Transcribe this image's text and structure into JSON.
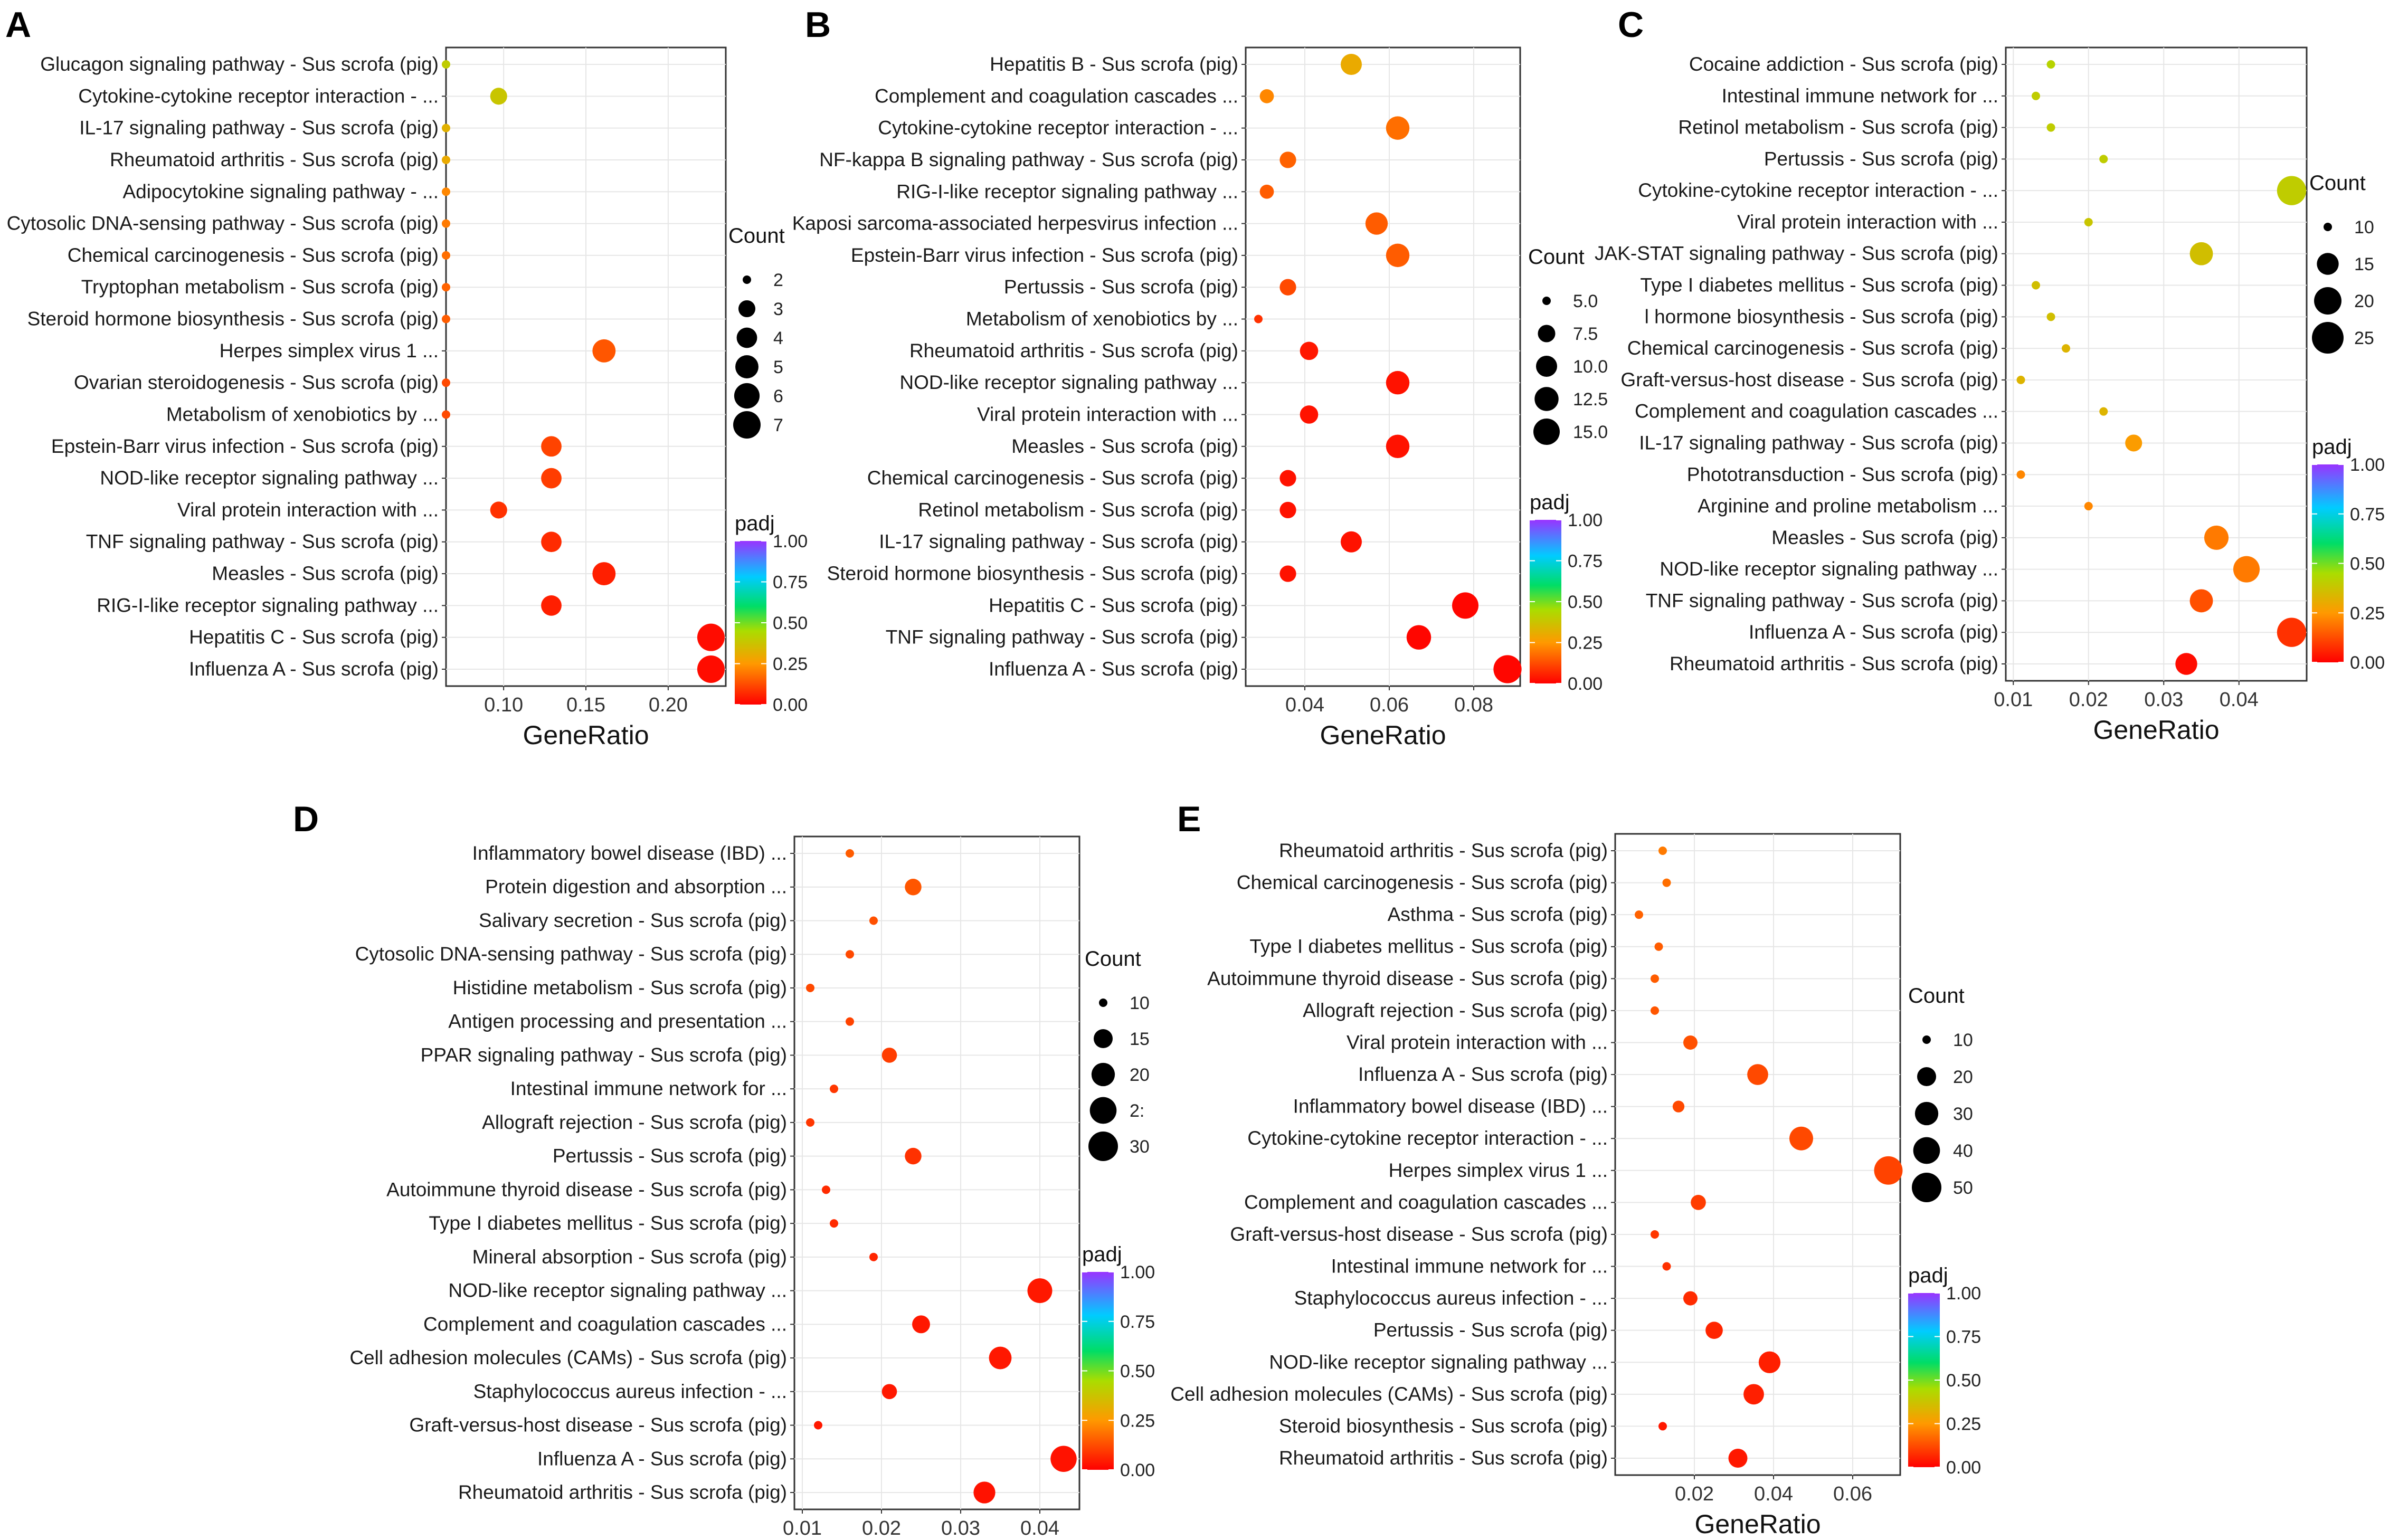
{
  "colors": {
    "low": "#ff0000",
    "mid1": "#ff8000",
    "mid2": "#c8d400",
    "mid3": "#00cc66",
    "mid4": "#00ccff",
    "high": "#8b2bff"
  },
  "chart_data": [
    {
      "panel": "A",
      "type": "scatter",
      "title": "",
      "xlabel": "GeneRatio",
      "ylabel": "",
      "xlim": [
        0.065,
        0.235
      ],
      "xticks": [
        0.1,
        0.15,
        0.2
      ],
      "xtick_labels": [
        "0.10",
        "0.15",
        "0.20"
      ],
      "size_legend": {
        "title": "Count",
        "values": [
          2,
          3,
          4,
          5,
          6,
          7
        ],
        "labels": [
          "2",
          "3",
          "4",
          "5",
          "6",
          "7"
        ]
      },
      "color_legend": {
        "title": "padj",
        "labels": [
          "1.00",
          "0.75",
          "0.50",
          "0.25",
          "0.00"
        ]
      },
      "terms": [
        "Glucagon signaling pathway - Sus scrofa (pig)",
        "Cytokine-cytokine receptor interaction - ...",
        "IL-17 signaling pathway - Sus scrofa (pig)",
        "Rheumatoid arthritis - Sus scrofa (pig)",
        "Adipocytokine signaling pathway - ...",
        "Cytosolic DNA-sensing pathway - Sus scrofa (pig)",
        "Chemical carcinogenesis - Sus scrofa (pig)",
        "Tryptophan metabolism - Sus scrofa (pig)",
        "Steroid hormone biosynthesis - Sus scrofa (pig)",
        "Herpes simplex virus 1 ...",
        "Ovarian steroidogenesis - Sus scrofa (pig)",
        "Metabolism of xenobiotics by ...",
        "Epstein-Barr virus infection - Sus scrofa (pig)",
        "NOD-like receptor signaling pathway ...",
        "Viral protein interaction with ...",
        "TNF signaling pathway - Sus scrofa (pig)",
        "Measles - Sus scrofa (pig)",
        "RIG-I-like receptor signaling pathway ...",
        "Hepatitis C - Sus scrofa (pig)",
        "Influenza A - Sus scrofa (pig)"
      ],
      "term_sizes": [
        34,
        36,
        34,
        36,
        36,
        32,
        34,
        34,
        34,
        36,
        34,
        37,
        33,
        34,
        33,
        34,
        34,
        36,
        36,
        36
      ],
      "gene_ratio": [
        0.065,
        0.097,
        0.065,
        0.065,
        0.065,
        0.065,
        0.065,
        0.065,
        0.065,
        0.161,
        0.065,
        0.065,
        0.129,
        0.129,
        0.097,
        0.129,
        0.161,
        0.129,
        0.226,
        0.226
      ],
      "count": [
        2,
        3,
        2,
        2,
        2,
        2,
        2,
        2,
        2,
        5,
        2,
        2,
        4,
        4,
        3,
        4,
        5,
        4,
        7,
        7
      ],
      "padj": [
        0.4,
        0.38,
        0.32,
        0.3,
        0.22,
        0.2,
        0.18,
        0.16,
        0.15,
        0.14,
        0.12,
        0.12,
        0.11,
        0.1,
        0.08,
        0.07,
        0.05,
        0.05,
        0.02,
        0.02
      ]
    },
    {
      "panel": "B",
      "type": "scatter",
      "title": "",
      "xlabel": "GeneRatio",
      "ylabel": "",
      "xlim": [
        0.026,
        0.091
      ],
      "xticks": [
        0.04,
        0.06,
        0.08
      ],
      "xtick_labels": [
        "0.04",
        "0.06",
        "0.08"
      ],
      "size_legend": {
        "title": "Count",
        "values": [
          5.0,
          7.5,
          10.0,
          12.5,
          15.0
        ],
        "labels": [
          "5.0",
          "7.5",
          "10.0",
          "12.5",
          "15.0"
        ]
      },
      "color_legend": {
        "title": "padj",
        "labels": [
          "1.00",
          "0.75",
          "0.50",
          "0.25",
          "0.00"
        ]
      },
      "terms": [
        "Hepatitis B - Sus scrofa (pig)",
        "Complement and coagulation cascades ...",
        "Cytokine-cytokine receptor interaction - ...",
        "NF-kappa B signaling pathway - Sus scrofa (pig)",
        "RIG-I-like receptor signaling pathway ...",
        "Kaposi sarcoma-associated herpesvirus infection ...",
        "Epstein-Barr virus infection - Sus scrofa (pig)",
        "Pertussis - Sus scrofa (pig)",
        "Metabolism of xenobiotics by ...",
        "Rheumatoid arthritis - Sus scrofa (pig)",
        "NOD-like receptor signaling pathway ...",
        "Viral protein interaction with ...",
        "Measles - Sus scrofa (pig)",
        "Chemical carcinogenesis - Sus scrofa (pig)",
        "Retinol metabolism - Sus scrofa (pig)",
        "IL-17 signaling pathway - Sus scrofa (pig)",
        "Steroid hormone biosynthesis - Sus scrofa (pig)",
        "Hepatitis C - Sus scrofa (pig)",
        "TNF signaling pathway - Sus scrofa (pig)",
        "Influenza A - Sus scrofa (pig)"
      ],
      "term_sizes": [
        36,
        38,
        39,
        36,
        36,
        35,
        35,
        36,
        36,
        35,
        38,
        37,
        37,
        35,
        35,
        37,
        34,
        36,
        33,
        37
      ],
      "gene_ratio": [
        0.051,
        0.031,
        0.062,
        0.036,
        0.031,
        0.057,
        0.062,
        0.036,
        0.029,
        0.041,
        0.062,
        0.041,
        0.062,
        0.036,
        0.036,
        0.051,
        0.036,
        0.078,
        0.067,
        0.088
      ],
      "count": [
        10,
        6,
        12,
        7,
        6,
        11,
        12,
        7,
        5,
        8,
        12,
        8,
        12,
        7,
        7,
        10,
        7,
        15,
        13,
        17
      ],
      "padj": [
        0.3,
        0.22,
        0.18,
        0.16,
        0.15,
        0.15,
        0.15,
        0.12,
        0.08,
        0.04,
        0.03,
        0.03,
        0.03,
        0.03,
        0.03,
        0.03,
        0.03,
        0.01,
        0.01,
        0.01
      ]
    },
    {
      "panel": "C",
      "type": "scatter",
      "title": "",
      "xlabel": "GeneRatio",
      "ylabel": "",
      "xlim": [
        0.009,
        0.049
      ],
      "xticks": [
        0.01,
        0.02,
        0.03,
        0.04
      ],
      "xtick_labels": [
        "0.01",
        "0.02",
        "0.03",
        "0.04"
      ],
      "size_legend": {
        "title": "Count",
        "values": [
          10,
          15,
          20,
          25
        ],
        "labels": [
          "10",
          "15",
          "20",
          "25"
        ]
      },
      "color_legend": {
        "title": "padj",
        "labels": [
          "1.00",
          "0.75",
          "0.50",
          "0.25",
          "0.00"
        ]
      },
      "terms": [
        "Cocaine addiction - Sus scrofa (pig)",
        "Intestinal immune network for ...",
        "Retinol metabolism - Sus scrofa (pig)",
        "Pertussis - Sus scrofa (pig)",
        "Cytokine-cytokine receptor interaction - ...",
        "Viral protein interaction with ...",
        "JAK-STAT signaling pathway - Sus scrofa (pig)",
        "Type I diabetes mellitus - Sus scrofa (pig)",
        "l hormone biosynthesis - Sus scrofa (pig)",
        "Chemical carcinogenesis - Sus scrofa (pig)",
        "Graft-versus-host disease - Sus scrofa (pig)",
        "Complement and coagulation cascades ...",
        "IL-17 signaling pathway - Sus scrofa (pig)",
        "Phototransduction - Sus scrofa (pig)",
        "Arginine and proline metabolism ...",
        "Measles - Sus scrofa (pig)",
        "NOD-like receptor signaling pathway ...",
        "TNF signaling pathway - Sus scrofa (pig)",
        "Influenza A - Sus scrofa (pig)",
        "Rheumatoid arthritis - Sus scrofa (pig)"
      ],
      "term_sizes": [
        35,
        35,
        31,
        34,
        37,
        32,
        32,
        33,
        34,
        32,
        34,
        35,
        32,
        34,
        32,
        32,
        32,
        31,
        33,
        35
      ],
      "gene_ratio": [
        0.015,
        0.013,
        0.015,
        0.022,
        0.047,
        0.02,
        0.035,
        0.013,
        0.015,
        0.017,
        0.011,
        0.022,
        0.026,
        0.011,
        0.02,
        0.037,
        0.041,
        0.035,
        0.047,
        0.033
      ],
      "count": [
        7,
        6,
        7,
        10,
        22,
        9,
        16,
        6,
        7,
        8,
        5,
        10,
        12,
        5,
        9,
        17,
        19,
        16,
        22,
        15
      ],
      "padj": [
        0.42,
        0.4,
        0.4,
        0.4,
        0.4,
        0.38,
        0.36,
        0.36,
        0.36,
        0.33,
        0.33,
        0.33,
        0.26,
        0.22,
        0.22,
        0.2,
        0.2,
        0.13,
        0.08,
        0.02
      ]
    },
    {
      "panel": "D",
      "type": "scatter",
      "title": "",
      "xlabel": "GeneRatio",
      "ylabel": "",
      "xlim": [
        0.009,
        0.045
      ],
      "xticks": [
        0.01,
        0.02,
        0.03,
        0.04
      ],
      "xtick_labels": [
        "0.01",
        "0.02",
        "0.03",
        "0.04"
      ],
      "size_legend": {
        "title": "Count",
        "values": [
          10,
          15,
          20,
          25,
          30
        ],
        "labels": [
          "10",
          "15",
          "20",
          "2:",
          "30"
        ]
      },
      "color_legend": {
        "title": "padj",
        "labels": [
          "1.00",
          "0.75",
          "0.50",
          "0.25",
          "0.00"
        ]
      },
      "terms": [
        "Inflammatory bowel disease (IBD) ...",
        "Protein digestion and absorption ...",
        "Salivary secretion - Sus scrofa (pig)",
        "Cytosolic DNA-sensing pathway - Sus scrofa (pig)",
        "Histidine metabolism - Sus scrofa (pig)",
        "Antigen processing and presentation ...",
        "PPAR signaling pathway - Sus scrofa (pig)",
        "Intestinal immune network for ...",
        "Allograft rejection - Sus scrofa (pig)",
        "Pertussis - Sus scrofa (pig)",
        "Autoimmune thyroid disease - Sus scrofa (pig)",
        "Type I diabetes mellitus - Sus scrofa (pig)",
        "Mineral absorption - Sus scrofa (pig)",
        "NOD-like receptor signaling pathway ...",
        "Complement and coagulation cascades ...",
        "Cell adhesion molecules (CAMs) - Sus scrofa (pig)",
        "Staphylococcus aureus infection - ...",
        "Graft-versus-host disease - Sus scrofa (pig)",
        "Influenza A - Sus scrofa (pig)",
        "Rheumatoid arthritis - Sus scrofa (pig)"
      ],
      "term_sizes": [
        37,
        40,
        37,
        35,
        36,
        41,
        36,
        37,
        33,
        36,
        34,
        35,
        36,
        33,
        38,
        36,
        39,
        35,
        40,
        36
      ],
      "gene_ratio": [
        0.016,
        0.024,
        0.019,
        0.016,
        0.011,
        0.016,
        0.021,
        0.014,
        0.011,
        0.024,
        0.013,
        0.014,
        0.019,
        0.04,
        0.025,
        0.035,
        0.021,
        0.012,
        0.043,
        0.033
      ],
      "count": [
        8,
        13,
        10,
        8,
        5,
        8,
        12,
        7,
        5,
        13,
        6,
        7,
        10,
        22,
        14,
        19,
        12,
        6,
        24,
        18
      ],
      "padj": [
        0.15,
        0.14,
        0.13,
        0.12,
        0.12,
        0.11,
        0.1,
        0.09,
        0.09,
        0.08,
        0.07,
        0.07,
        0.06,
        0.04,
        0.04,
        0.04,
        0.04,
        0.04,
        0.03,
        0.03
      ]
    },
    {
      "panel": "E",
      "type": "scatter",
      "title": "",
      "xlabel": "GeneRatio",
      "ylabel": "",
      "xlim": [
        0.0,
        0.072
      ],
      "xticks": [
        0.02,
        0.04,
        0.06
      ],
      "xtick_labels": [
        "0.02",
        "0.04",
        "0.06"
      ],
      "size_legend": {
        "title": "Count",
        "values": [
          10,
          20,
          30,
          40,
          50
        ],
        "labels": [
          "10",
          "20",
          "30",
          "40",
          "50"
        ]
      },
      "color_legend": {
        "title": "padj",
        "labels": [
          "1.00",
          "0.75",
          "0.50",
          "0.25",
          "0.00"
        ]
      },
      "terms": [
        "Rheumatoid arthritis - Sus scrofa (pig)",
        "Chemical carcinogenesis - Sus scrofa (pig)",
        "Asthma - Sus scrofa (pig)",
        "Type I diabetes mellitus - Sus scrofa (pig)",
        "Autoimmune thyroid disease - Sus scrofa (pig)",
        "Allograft rejection - Sus scrofa (pig)",
        "Viral protein interaction with ...",
        "Influenza A - Sus scrofa (pig)",
        "Inflammatory bowel disease (IBD) ...",
        "Cytokine-cytokine receptor interaction - ...",
        "Herpes simplex virus 1 ...",
        "Complement and coagulation cascades ...",
        "Graft-versus-host disease - Sus scrofa (pig)",
        "Intestinal immune network for ...",
        "Staphylococcus aureus infection - ...",
        "Pertussis - Sus scrofa (pig)",
        "NOD-like receptor signaling pathway ...",
        "Cell adhesion molecules (CAMs) - Sus scrofa (pig)",
        "Steroid biosynthesis - Sus scrofa (pig)",
        "Rheumatoid arthritis - Sus scrofa (pig)"
      ],
      "term_sizes": [
        36,
        36,
        36,
        35,
        34,
        36,
        36,
        36,
        37,
        38,
        40,
        36,
        35,
        37,
        37,
        37,
        35,
        34,
        38,
        33
      ],
      "gene_ratio": [
        0.012,
        0.013,
        0.006,
        0.011,
        0.01,
        0.01,
        0.019,
        0.036,
        0.016,
        0.047,
        0.069,
        0.021,
        0.01,
        0.013,
        0.019,
        0.025,
        0.039,
        0.035,
        0.012,
        0.031
      ],
      "count": [
        8,
        9,
        4,
        7,
        6,
        6,
        13,
        24,
        11,
        31,
        46,
        14,
        6,
        9,
        13,
        17,
        26,
        23,
        8,
        20
      ],
      "padj": [
        0.2,
        0.18,
        0.16,
        0.15,
        0.15,
        0.14,
        0.13,
        0.12,
        0.12,
        0.12,
        0.11,
        0.1,
        0.09,
        0.08,
        0.07,
        0.06,
        0.05,
        0.05,
        0.04,
        0.04
      ]
    }
  ]
}
